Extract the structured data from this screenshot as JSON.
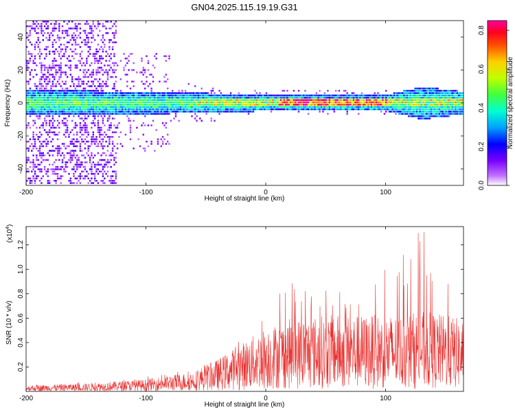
{
  "title": "GN04.2025.115.19.19.G31",
  "chart_data": [
    {
      "type": "heatmap",
      "xlabel": "Height of straight line (km)",
      "ylabel": "Frequency (Hz)",
      "xlim": [
        -200,
        165
      ],
      "ylim": [
        -50,
        50
      ],
      "xticks": [
        -200,
        -100,
        0,
        100
      ],
      "yticks": [
        -40,
        -20,
        0,
        20,
        40
      ],
      "colorbar": {
        "label": "Normalized spectral amplitude",
        "range": [
          0.0,
          0.85
        ],
        "ticks": [
          0.0,
          0.2,
          0.4,
          0.6,
          0.8
        ],
        "colors": [
          "#ffffff",
          "#c070ff",
          "#7a00ff",
          "#0000ff",
          "#00c8ff",
          "#00ff80",
          "#60ff00",
          "#ffff00",
          "#ff8000",
          "#ff0000",
          "#ff00a0"
        ]
      },
      "ridge": {
        "center_frequency": 0,
        "description_points": [
          {
            "x": -200,
            "half_width": 8
          },
          {
            "x": -100,
            "half_width": 7
          },
          {
            "x": 0,
            "half_width": 5
          },
          {
            "x": 100,
            "half_width": 5
          },
          {
            "x": 130,
            "half_width": 10
          },
          {
            "x": 165,
            "half_width": 7
          }
        ]
      }
    },
    {
      "type": "line",
      "xlabel": "Height of straight line (km)",
      "ylabel": "SNR (10 * v/v)",
      "y_multiplier": "(x10",
      "y_multiplier_exp": "4",
      "y_multiplier_close": ")",
      "xlim": [
        -200,
        165
      ],
      "ylim": [
        0,
        1.35
      ],
      "xticks": [
        -200,
        -100,
        0,
        100
      ],
      "yticks": [
        0.2,
        0.4,
        0.6,
        0.8,
        1.0,
        1.2
      ],
      "line_color": "#e8302e",
      "envelope": [
        {
          "x": -200,
          "mean": 0.03,
          "peak": 0.05
        },
        {
          "x": -150,
          "mean": 0.04,
          "peak": 0.08
        },
        {
          "x": -100,
          "mean": 0.06,
          "peak": 0.12
        },
        {
          "x": -60,
          "mean": 0.1,
          "peak": 0.18
        },
        {
          "x": -40,
          "mean": 0.16,
          "peak": 0.3
        },
        {
          "x": -20,
          "mean": 0.24,
          "peak": 0.45
        },
        {
          "x": 0,
          "mean": 0.32,
          "peak": 0.7
        },
        {
          "x": 20,
          "mean": 0.36,
          "peak": 0.9
        },
        {
          "x": 50,
          "mean": 0.38,
          "peak": 0.85
        },
        {
          "x": 80,
          "mean": 0.38,
          "peak": 0.9
        },
        {
          "x": 110,
          "mean": 0.38,
          "peak": 1.05
        },
        {
          "x": 130,
          "mean": 0.4,
          "peak": 1.35
        },
        {
          "x": 150,
          "mean": 0.38,
          "peak": 0.95
        },
        {
          "x": 165,
          "mean": 0.36,
          "peak": 0.8
        }
      ]
    }
  ]
}
